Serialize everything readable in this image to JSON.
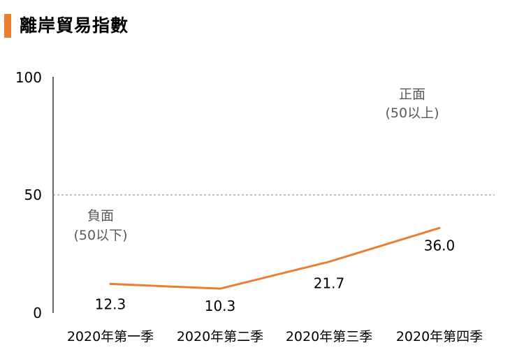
{
  "title": "離岸貿易指數",
  "colors": {
    "accent": "#ED7D31",
    "line": "#ED7D31",
    "axis": "#000000",
    "zone_text": "#595959"
  },
  "chart_data": {
    "type": "line",
    "title": "離岸貿易指數",
    "categories": [
      "2020年第一季",
      "2020年第二季",
      "2020年第三季",
      "2020年第四季"
    ],
    "series": [
      {
        "values": [
          12.3,
          10.3,
          21.7,
          36.0
        ],
        "value_labels": [
          "12.3",
          "10.3",
          "21.7",
          "36.0"
        ]
      }
    ],
    "y_ticks": [
      "0",
      "50",
      "100"
    ],
    "ylim": [
      0,
      100
    ],
    "reference_line": {
      "value": 50,
      "style": "dashed"
    },
    "annotations": {
      "positive": {
        "line1": "正面",
        "line2": "(50以上)"
      },
      "negative": {
        "line1": "負面",
        "line2": "(50以下)"
      }
    },
    "grid": false,
    "legend": "none"
  }
}
